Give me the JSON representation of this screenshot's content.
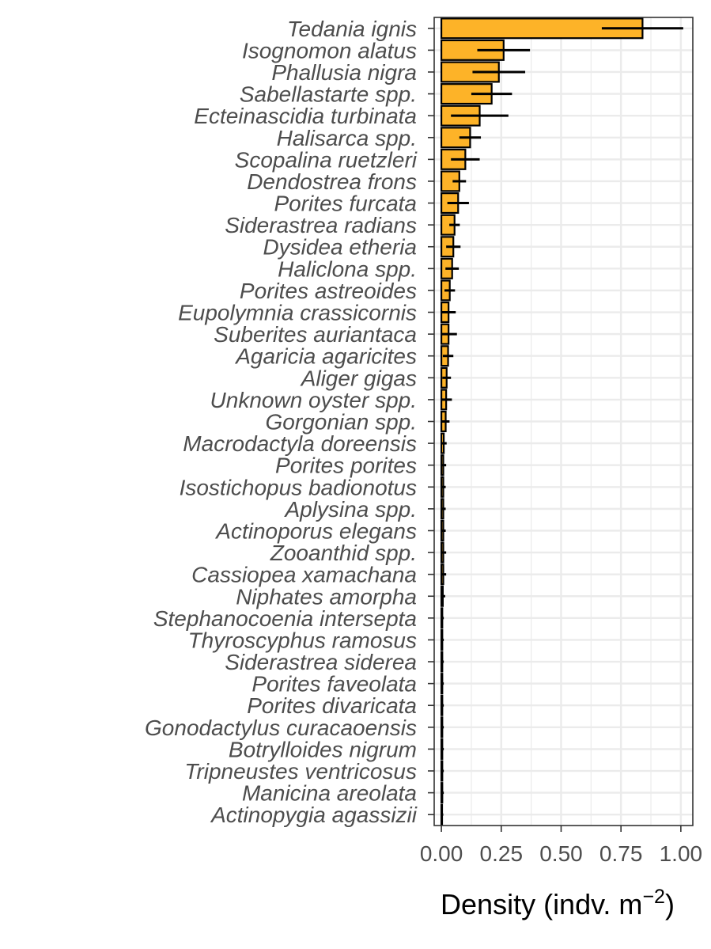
{
  "chart_data": {
    "type": "bar",
    "orientation": "horizontal",
    "xlabel": "Density (indv. m",
    "xlabel_sup": "−2",
    "xlabel_close": ")",
    "xlim": [
      -0.03,
      1.05
    ],
    "xticks": [
      0.0,
      0.25,
      0.5,
      0.75,
      1.0
    ],
    "xtick_labels": [
      "0.00",
      "0.25",
      "0.50",
      "0.75",
      "1.00"
    ],
    "grid": true,
    "colors": {
      "bar": "#FDB328",
      "bar_outline": "#000000",
      "error": "#000000",
      "grid": "#ebebeb",
      "panel_border": "#333333"
    },
    "categories": [
      "Tedania ignis",
      "Isognomon alatus",
      "Phallusia nigra",
      "Sabellastarte spp.",
      "Ecteinascidia turbinata",
      "Halisarca spp.",
      "Scopalina ruetzleri",
      "Dendostrea frons",
      "Porites furcata",
      "Siderastrea radians",
      "Dysidea etheria",
      "Haliclona spp.",
      "Porites astreoides",
      "Eupolymnia crassicornis",
      "Suberites auriantaca",
      "Agaricia agaricites",
      "Aliger gigas",
      "Unknown oyster spp.",
      "Gorgonian spp.",
      "Macrodactyla doreensis",
      "Porites porites",
      "Isostichopus badionotus",
      "Aplysina spp.",
      "Actinoporus elegans",
      "Zooanthid spp.",
      "Cassiopea xamachana",
      "Niphates amorpha",
      "Stephanocoenia intersepta",
      "Thyroscyphus ramosus",
      "Siderastrea siderea",
      "Porites faveolata",
      "Porites divaricata",
      "Gonodactylus curacaoensis",
      "Botrylloides nigrum",
      "Tripneustes ventricosus",
      "Manicina areolata",
      "Actinopygia agassizii"
    ],
    "values": [
      0.84,
      0.26,
      0.24,
      0.21,
      0.16,
      0.12,
      0.1,
      0.075,
      0.07,
      0.055,
      0.05,
      0.045,
      0.035,
      0.03,
      0.03,
      0.028,
      0.022,
      0.02,
      0.018,
      0.01,
      0.008,
      0.008,
      0.008,
      0.008,
      0.008,
      0.008,
      0.006,
      0.004,
      0.004,
      0.004,
      0.004,
      0.004,
      0.004,
      0.004,
      0.004,
      0.004,
      0.003
    ],
    "errors": [
      0.17,
      0.11,
      0.11,
      0.085,
      0.12,
      0.045,
      0.06,
      0.028,
      0.045,
      0.022,
      0.03,
      0.028,
      0.022,
      0.03,
      0.035,
      0.022,
      0.018,
      0.024,
      0.016,
      0.012,
      0.012,
      0.01,
      0.01,
      0.01,
      0.012,
      0.012,
      0.01,
      0.006,
      0.006,
      0.006,
      0.006,
      0.006,
      0.006,
      0.006,
      0.006,
      0.006,
      0.005
    ]
  }
}
